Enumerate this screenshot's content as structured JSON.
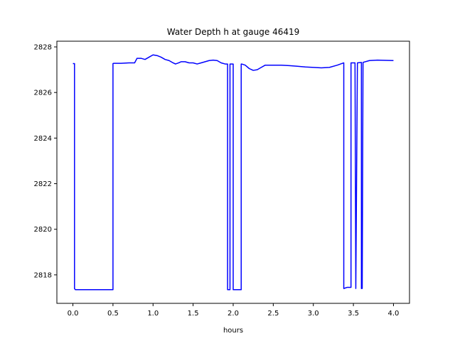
{
  "chart_data": {
    "type": "line",
    "title": "Water Depth h at gauge 46419",
    "xlabel": "hours",
    "ylabel": "",
    "xlim": [
      -0.2,
      4.2
    ],
    "ylim": [
      2816.75,
      2828.25
    ],
    "xticks": [
      0.0,
      0.5,
      1.0,
      1.5,
      2.0,
      2.5,
      3.0,
      3.5,
      4.0
    ],
    "xtick_labels": [
      "0.0",
      "0.5",
      "1.0",
      "1.5",
      "2.0",
      "2.5",
      "3.0",
      "3.5",
      "4.0"
    ],
    "yticks": [
      2818,
      2820,
      2822,
      2824,
      2826,
      2828
    ],
    "ytick_labels": [
      "2818",
      "2820",
      "2822",
      "2824",
      "2826",
      "2828"
    ],
    "grid": false,
    "series": [
      {
        "color": "#0000ff",
        "x": [
          0.0,
          0.02,
          0.02,
          0.03,
          0.5,
          0.5,
          0.51,
          0.6,
          0.7,
          0.77,
          0.8,
          0.85,
          0.9,
          0.95,
          1.0,
          1.05,
          1.1,
          1.15,
          1.2,
          1.25,
          1.28,
          1.32,
          1.35,
          1.4,
          1.45,
          1.5,
          1.55,
          1.6,
          1.65,
          1.7,
          1.75,
          1.8,
          1.85,
          1.9,
          1.93,
          1.93,
          1.935,
          1.96,
          1.96,
          2.0,
          2.0,
          2.005,
          2.1,
          2.1,
          2.105,
          2.15,
          2.2,
          2.25,
          2.3,
          2.35,
          2.4,
          2.5,
          2.6,
          2.7,
          2.8,
          2.9,
          3.0,
          3.1,
          3.2,
          3.3,
          3.38,
          3.38,
          3.42,
          3.47,
          3.47,
          3.5,
          3.52,
          3.53,
          3.53,
          3.55,
          3.6,
          3.6,
          3.61,
          3.62,
          3.62,
          3.7,
          3.8,
          4.0
        ],
        "y": [
          2827.27,
          2827.27,
          2817.4,
          2817.35,
          2817.35,
          2827.27,
          2827.28,
          2827.28,
          2827.3,
          2827.3,
          2827.5,
          2827.5,
          2827.45,
          2827.55,
          2827.65,
          2827.62,
          2827.55,
          2827.45,
          2827.4,
          2827.3,
          2827.25,
          2827.3,
          2827.35,
          2827.35,
          2827.3,
          2827.3,
          2827.25,
          2827.3,
          2827.35,
          2827.4,
          2827.42,
          2827.4,
          2827.3,
          2827.25,
          2827.25,
          2817.35,
          2817.35,
          2817.35,
          2827.25,
          2827.25,
          2817.35,
          2817.35,
          2817.35,
          2827.25,
          2827.25,
          2827.2,
          2827.05,
          2826.97,
          2827.0,
          2827.1,
          2827.2,
          2827.2,
          2827.2,
          2827.18,
          2827.15,
          2827.12,
          2827.1,
          2827.08,
          2827.1,
          2827.2,
          2827.3,
          2817.4,
          2817.45,
          2817.45,
          2827.3,
          2827.3,
          2827.3,
          2817.4,
          2817.4,
          2827.3,
          2827.32,
          2817.4,
          2817.4,
          2827.32,
          2827.32,
          2827.4,
          2827.42,
          2827.4
        ]
      }
    ]
  }
}
